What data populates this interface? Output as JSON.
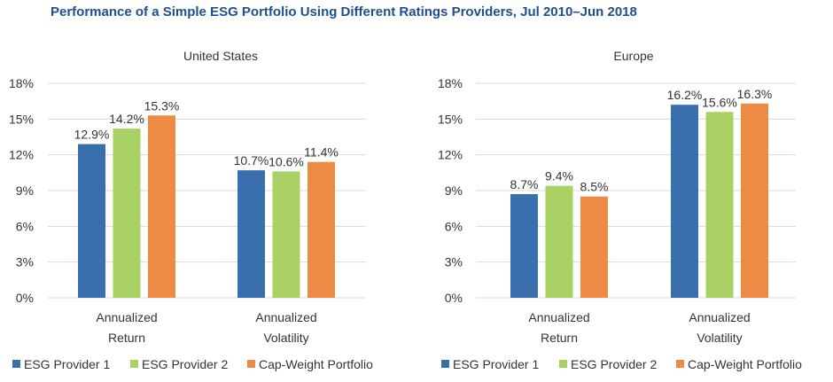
{
  "title": "Performance of a Simple ESG Portfolio Using Different Ratings Providers, Jul 2010–Jun 2018",
  "colors": {
    "ESG Provider 1": "#3a6fad",
    "ESG Provider 2": "#a9d164",
    "Cap-Weight Portfolio": "#ed8a43",
    "grid": "#d9d9d9"
  },
  "chart_data": [
    {
      "type": "bar",
      "title": "United States",
      "categories": [
        [
          "Annualized",
          "Return"
        ],
        [
          "Annualized",
          "Volatility"
        ]
      ],
      "series": [
        {
          "name": "ESG Provider 1",
          "values": [
            12.9,
            10.7
          ],
          "labels": [
            "12.9%",
            "10.7%"
          ]
        },
        {
          "name": "ESG Provider 2",
          "values": [
            14.2,
            10.6
          ],
          "labels": [
            "14.2%",
            "10.6%"
          ]
        },
        {
          "name": "Cap-Weight Portfolio",
          "values": [
            15.3,
            11.4
          ],
          "labels": [
            "15.3%",
            "11.4%"
          ]
        }
      ],
      "ylim": [
        0,
        18
      ],
      "yticks": [
        "0%",
        "3%",
        "6%",
        "9%",
        "12%",
        "15%",
        "18%"
      ],
      "grid": true,
      "legend": "bottom"
    },
    {
      "type": "bar",
      "title": "Europe",
      "categories": [
        [
          "Annualized",
          "Return"
        ],
        [
          "Annualized",
          "Volatility"
        ]
      ],
      "series": [
        {
          "name": "ESG Provider 1",
          "values": [
            8.7,
            16.2
          ],
          "labels": [
            "8.7%",
            "16.2%"
          ]
        },
        {
          "name": "ESG Provider 2",
          "values": [
            9.4,
            15.6
          ],
          "labels": [
            "9.4%",
            "15.6%"
          ]
        },
        {
          "name": "Cap-Weight Portfolio",
          "values": [
            8.5,
            16.3
          ],
          "labels": [
            "8.5%",
            "16.3%"
          ]
        }
      ],
      "ylim": [
        0,
        18
      ],
      "yticks": [
        "0%",
        "3%",
        "6%",
        "9%",
        "12%",
        "15%",
        "18%"
      ],
      "grid": true,
      "legend": "bottom"
    }
  ]
}
